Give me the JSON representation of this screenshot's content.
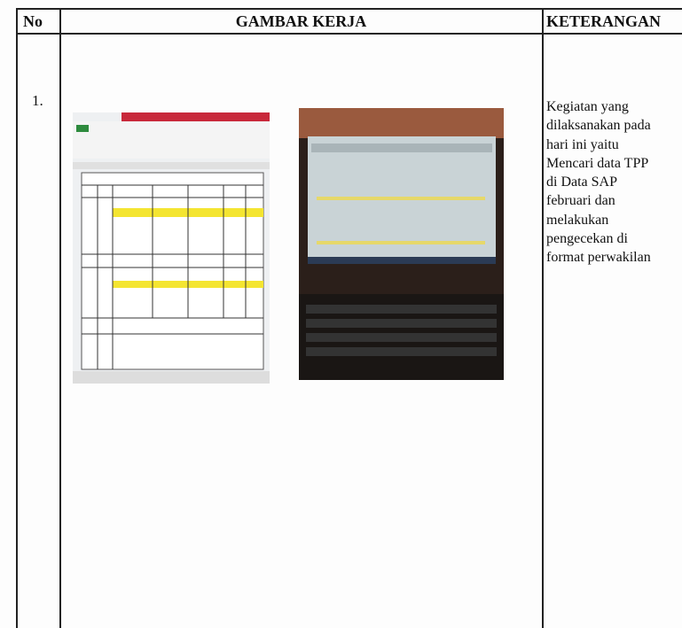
{
  "table": {
    "header": [
      "No",
      "GAMBAR KERJA",
      "KETERANGAN"
    ],
    "rows": [
      {
        "no": "1.",
        "keterangan": [
          "Kegiatan yang",
          "dilaksanakan pada",
          "hari ini yaitu",
          "Mencari data TPP",
          "di Data SAP",
          "februari dan",
          "melakukan",
          "pengecekan di",
          "format perwakilan"
        ]
      }
    ]
  }
}
